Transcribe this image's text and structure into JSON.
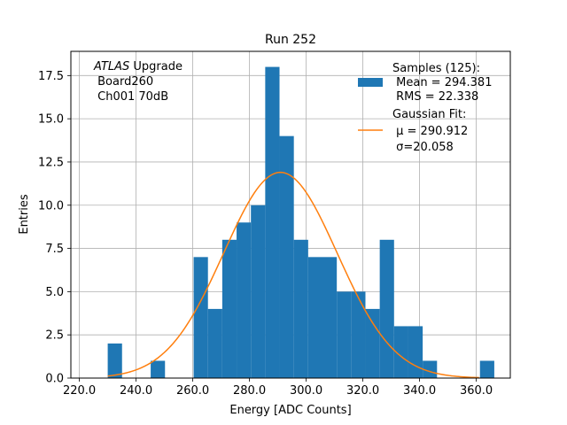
{
  "chart_data": {
    "type": "bar",
    "title": "Run 252",
    "xlabel": "Energy [ADC Counts]",
    "ylabel": "Entries",
    "xlim": [
      217.0,
      372.0
    ],
    "ylim": [
      0,
      18.9
    ],
    "grid": true,
    "x_ticks": [
      220.0,
      240.0,
      260.0,
      280.0,
      300.0,
      320.0,
      340.0,
      360.0
    ],
    "x_tick_labels": [
      "220.0",
      "240.0",
      "260.0",
      "280.0",
      "300.0",
      "320.0",
      "340.0",
      "360.0"
    ],
    "y_ticks": [
      0,
      2.5,
      5,
      7.5,
      10,
      12.5,
      15,
      17.5
    ],
    "y_tick_labels": [
      "0.0",
      "2.5",
      "5.0",
      "7.5",
      "10.0",
      "12.5",
      "15.0",
      "17.5"
    ],
    "bin_width": 5.05,
    "bin_edges": [
      230.0,
      235.05,
      240.1,
      245.15,
      250.2,
      255.25,
      260.3,
      265.35,
      270.4,
      275.45,
      280.5,
      285.55,
      290.6,
      295.65,
      300.7,
      305.75,
      310.8,
      315.85,
      320.9,
      325.95,
      331.0,
      336.05,
      341.1,
      346.15,
      351.2,
      356.25,
      361.3,
      366.35
    ],
    "counts": [
      2,
      0,
      0,
      1,
      0,
      0,
      7,
      4,
      8,
      9,
      10,
      18,
      14,
      8,
      7,
      7,
      5,
      5,
      4,
      8,
      3,
      3,
      1,
      0,
      0,
      0,
      1
    ],
    "series": [
      {
        "name": "Samples (125)",
        "kind": "histogram",
        "color": "#1f77b4"
      },
      {
        "name": "Gaussian Fit",
        "kind": "line",
        "color": "#ff7f0e",
        "mu": 290.912,
        "sigma": 20.058,
        "amplitude": 11.9,
        "x_range": [
          230.0,
          361.0
        ]
      }
    ],
    "legend": {
      "placement": "top-right",
      "samples_lines": [
        "Samples (125):",
        " Mean = 294.381",
        " RMS = 22.338"
      ],
      "fit_lines": [
        "Gaussian Fit:",
        " μ = 290.912",
        " σ=20.058"
      ]
    },
    "annotation": {
      "italic": "ATLAS",
      "suffix": " Upgrade",
      "lines": [
        " Board260",
        " Ch001 70dB"
      ]
    }
  }
}
